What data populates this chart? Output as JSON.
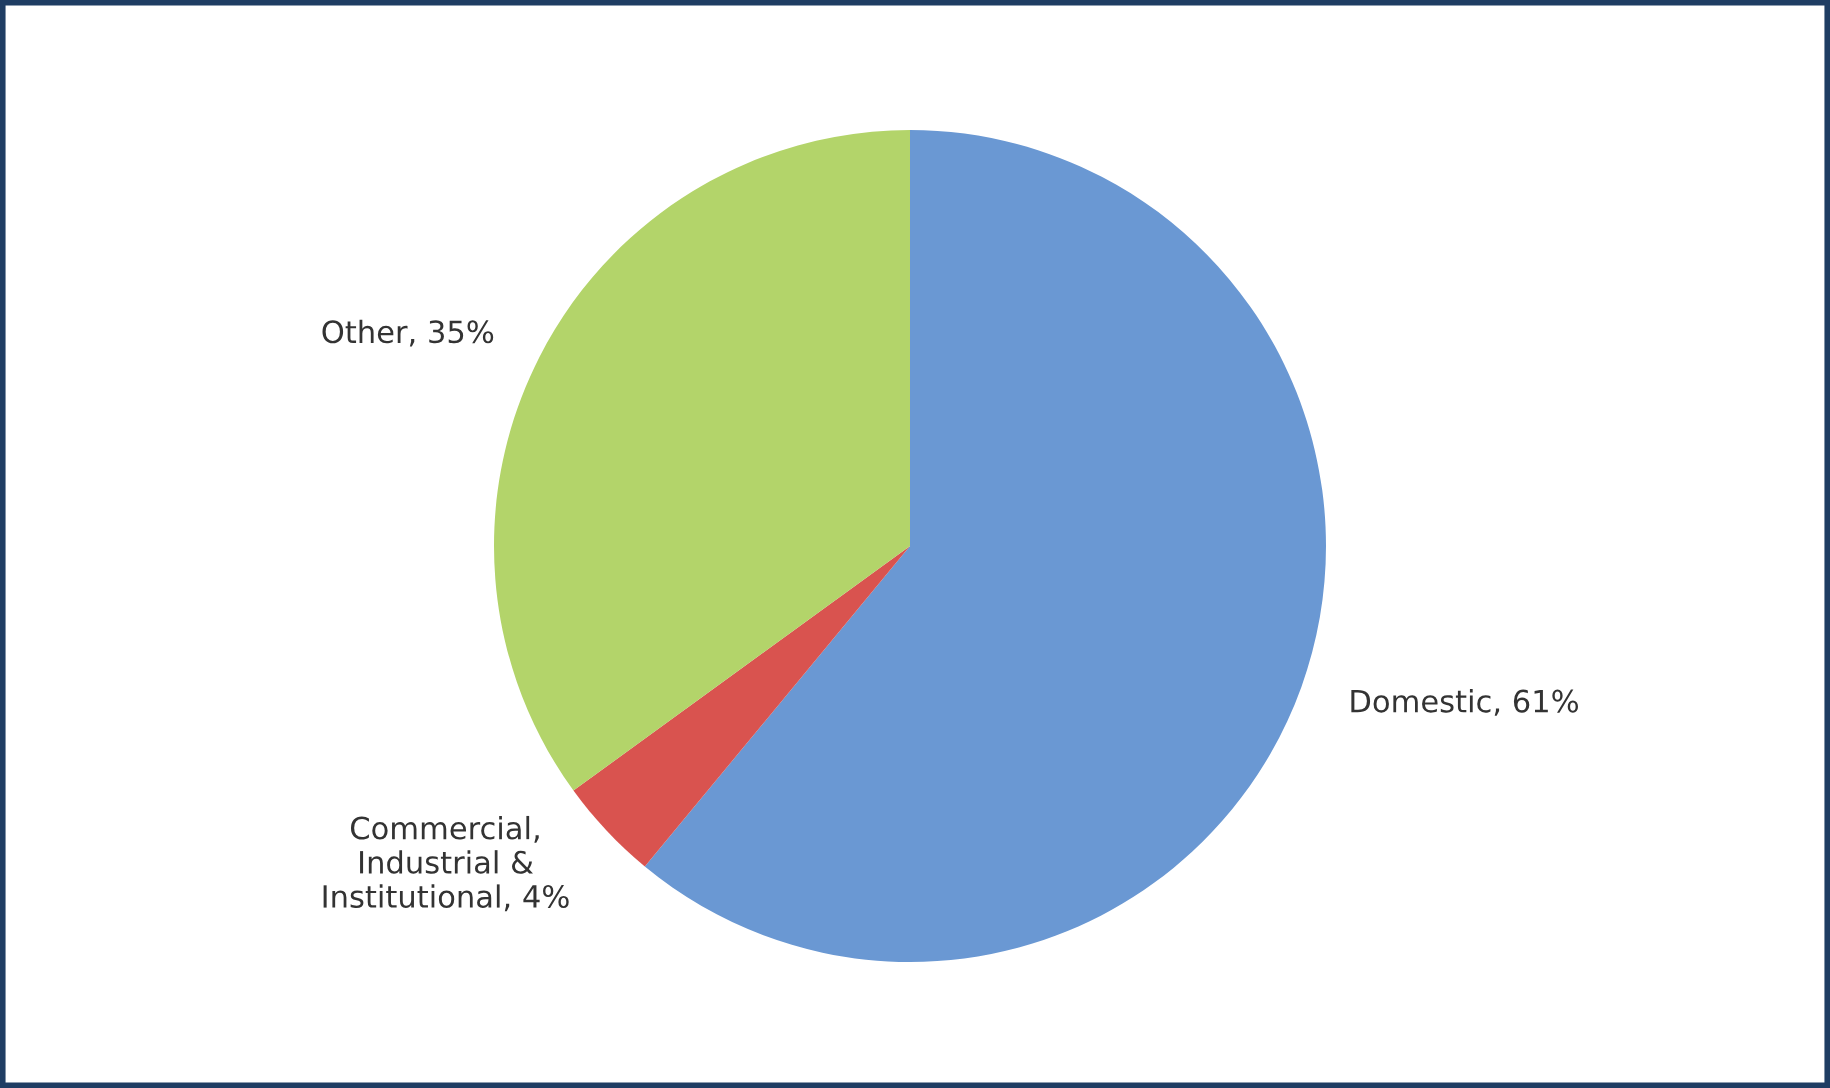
{
  "chart_data": {
    "type": "pie",
    "categories": [
      "Domestic",
      "Commercial,\nIndustrial &\nInstitutional",
      "Other"
    ],
    "values": [
      61,
      4,
      35
    ],
    "value_labels": [
      "61%",
      "4%",
      "35%"
    ],
    "colors": [
      "#6a98d3",
      "#d9534f",
      "#b3d46a"
    ],
    "legend": false
  }
}
